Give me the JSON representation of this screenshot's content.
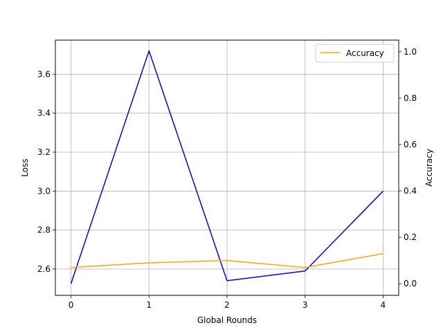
{
  "chart_data": {
    "type": "line",
    "title": "",
    "xlabel": "Global Rounds",
    "ylabel_left": "Loss",
    "ylabel_right": "Accuracy",
    "x": [
      0,
      1,
      2,
      3,
      4
    ],
    "xlim": [
      -0.2,
      4.2
    ],
    "ylim_left": [
      2.465,
      3.775
    ],
    "ylim_right": [
      -0.05,
      1.05
    ],
    "yticks_left": [
      "2.6",
      "2.8",
      "3.0",
      "3.2",
      "3.4",
      "3.6"
    ],
    "yticks_right": [
      "0.0",
      "0.2",
      "0.4",
      "0.6",
      "0.8",
      "1.0"
    ],
    "grid": true,
    "legend_position": "top-right",
    "series": [
      {
        "name": "",
        "axis": "left",
        "color": "#0000ff",
        "values": [
          2.525,
          3.72,
          2.54,
          2.59,
          3.0
        ]
      },
      {
        "name": "Accuracy",
        "axis": "right",
        "color": "#ffa500",
        "values": [
          0.07,
          0.09,
          0.1,
          0.07,
          0.13
        ]
      }
    ]
  }
}
